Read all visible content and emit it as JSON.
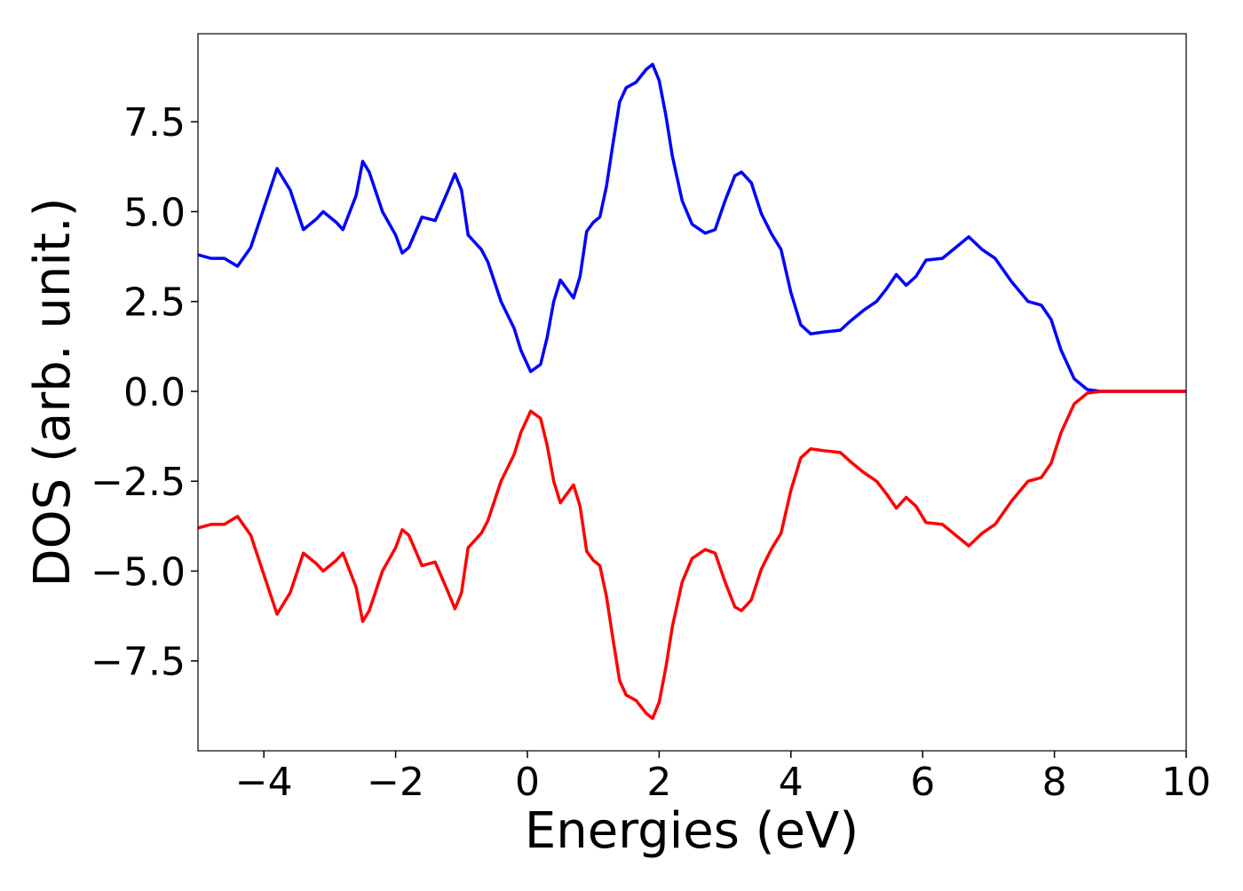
{
  "chart_data": {
    "type": "line",
    "xlabel": "Energies (eV)",
    "ylabel": "DOS (arb. unit.)",
    "x": [
      -5,
      -4.8,
      -4.6,
      -4.4,
      -4.2,
      -4.0,
      -3.8,
      -3.6,
      -3.4,
      -3.2,
      -3.1,
      -2.9,
      -2.8,
      -2.6,
      -2.5,
      -2.4,
      -2.2,
      -2.0,
      -1.9,
      -1.8,
      -1.6,
      -1.4,
      -1.2,
      -1.1,
      -1.0,
      -0.9,
      -0.7,
      -0.6,
      -0.4,
      -0.2,
      -0.1,
      0.05,
      0.2,
      0.3,
      0.4,
      0.5,
      0.6,
      0.7,
      0.8,
      0.9,
      1.0,
      1.1,
      1.2,
      1.3,
      1.4,
      1.5,
      1.65,
      1.8,
      1.9,
      2.0,
      2.1,
      2.2,
      2.35,
      2.5,
      2.7,
      2.85,
      3.0,
      3.15,
      3.25,
      3.4,
      3.55,
      3.7,
      3.85,
      4.0,
      4.15,
      4.3,
      4.5,
      4.75,
      4.9,
      5.1,
      5.3,
      5.45,
      5.6,
      5.75,
      5.9,
      6.05,
      6.3,
      6.5,
      6.7,
      6.9,
      7.1,
      7.35,
      7.6,
      7.8,
      7.95,
      8.1,
      8.3,
      8.5,
      8.7,
      10
    ],
    "series": [
      {
        "color": "#0000ff",
        "values": [
          3.8,
          3.7,
          3.7,
          3.48,
          4.0,
          5.1,
          6.2,
          5.6,
          4.5,
          4.8,
          5.0,
          4.7,
          4.5,
          5.45,
          6.4,
          6.1,
          5.0,
          4.35,
          3.85,
          4.0,
          4.85,
          4.75,
          5.6,
          6.05,
          5.6,
          4.35,
          3.95,
          3.6,
          2.5,
          1.75,
          1.15,
          0.55,
          0.75,
          1.5,
          2.5,
          3.1,
          2.85,
          2.6,
          3.2,
          4.45,
          4.7,
          4.85,
          5.7,
          6.9,
          8.05,
          8.45,
          8.6,
          8.95,
          9.1,
          8.65,
          7.7,
          6.55,
          5.3,
          4.65,
          4.4,
          4.5,
          5.3,
          6.0,
          6.1,
          5.8,
          4.95,
          4.4,
          3.95,
          2.75,
          1.85,
          1.6,
          1.65,
          1.7,
          1.95,
          2.25,
          2.5,
          2.85,
          3.25,
          2.95,
          3.2,
          3.65,
          3.7,
          4.0,
          4.3,
          3.95,
          3.7,
          3.05,
          2.5,
          2.4,
          2.0,
          1.15,
          0.35,
          0.05,
          0,
          0
        ]
      },
      {
        "color": "#ff0000",
        "values": [
          -3.8,
          -3.7,
          -3.7,
          -3.48,
          -4.0,
          -5.1,
          -6.2,
          -5.6,
          -4.5,
          -4.8,
          -5.0,
          -4.7,
          -4.5,
          -5.45,
          -6.4,
          -6.1,
          -5.0,
          -4.35,
          -3.85,
          -4.0,
          -4.85,
          -4.75,
          -5.6,
          -6.05,
          -5.6,
          -4.35,
          -3.95,
          -3.6,
          -2.5,
          -1.75,
          -1.15,
          -0.55,
          -0.75,
          -1.5,
          -2.5,
          -3.1,
          -2.85,
          -2.6,
          -3.2,
          -4.45,
          -4.7,
          -4.85,
          -5.7,
          -6.9,
          -8.05,
          -8.45,
          -8.6,
          -8.95,
          -9.1,
          -8.65,
          -7.7,
          -6.55,
          -5.3,
          -4.65,
          -4.4,
          -4.5,
          -5.3,
          -6.0,
          -6.1,
          -5.8,
          -4.95,
          -4.4,
          -3.95,
          -2.75,
          -1.85,
          -1.6,
          -1.65,
          -1.7,
          -1.95,
          -2.25,
          -2.5,
          -2.85,
          -3.25,
          -2.95,
          -3.2,
          -3.65,
          -3.7,
          -4.0,
          -4.3,
          -3.95,
          -3.7,
          -3.05,
          -2.5,
          -2.4,
          -2.0,
          -1.15,
          -0.35,
          -0.05,
          0,
          0
        ]
      }
    ],
    "xlim": [
      -5,
      10
    ],
    "xticks": [
      {
        "value": -4,
        "label": "−4"
      },
      {
        "value": -2,
        "label": "−2"
      },
      0,
      2,
      4,
      6,
      8,
      10
    ],
    "ylim": [
      -10,
      9.95
    ],
    "yticks": [
      {
        "value": -7.5,
        "label": "−7.5"
      },
      {
        "value": -5,
        "label": "−5.0"
      },
      {
        "value": -2.5,
        "label": "−2.5"
      },
      {
        "value": 0,
        "label": "0.0"
      },
      2.5,
      {
        "value": 5,
        "label": "5.0"
      },
      7.5
    ],
    "grid": false
  }
}
